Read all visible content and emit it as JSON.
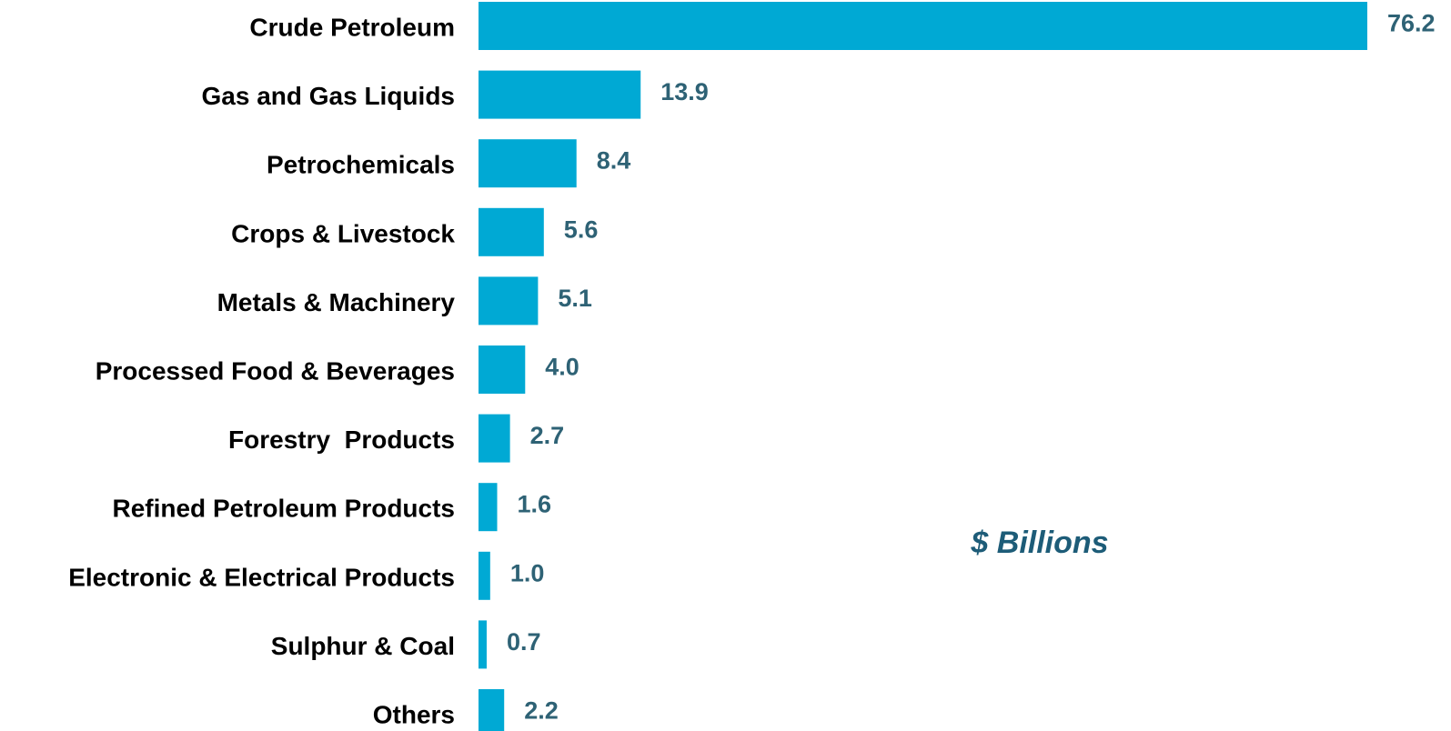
{
  "chart_data": {
    "type": "bar",
    "orientation": "horizontal",
    "categories": [
      "Crude Petroleum",
      "Gas and Gas Liquids",
      "Petrochemicals",
      "Crops & Livestock",
      "Metals & Machinery",
      "Processed Food & Beverages",
      "Forestry  Products",
      "Refined Petroleum Products",
      "Electronic & Electrical Products",
      "Sulphur & Coal",
      "Others"
    ],
    "values": [
      76.2,
      13.9,
      8.4,
      5.6,
      5.1,
      4.0,
      2.7,
      1.6,
      1.0,
      0.7,
      2.2
    ],
    "value_labels": [
      "76.2",
      "13.9",
      "8.4",
      "5.6",
      "5.1",
      "4.0",
      "2.7",
      "1.6",
      "1.0",
      "0.7",
      "2.2"
    ],
    "unit_label": "$ Billions",
    "title": "",
    "xlabel": "",
    "ylabel": "",
    "xlim": [
      0,
      76.2
    ],
    "grid": false,
    "legend": "none",
    "colors": {
      "bar": "#00a9d4",
      "value_label": "#2e6275",
      "category_label": "#000000",
      "unit_label": "#1d5c78"
    }
  }
}
